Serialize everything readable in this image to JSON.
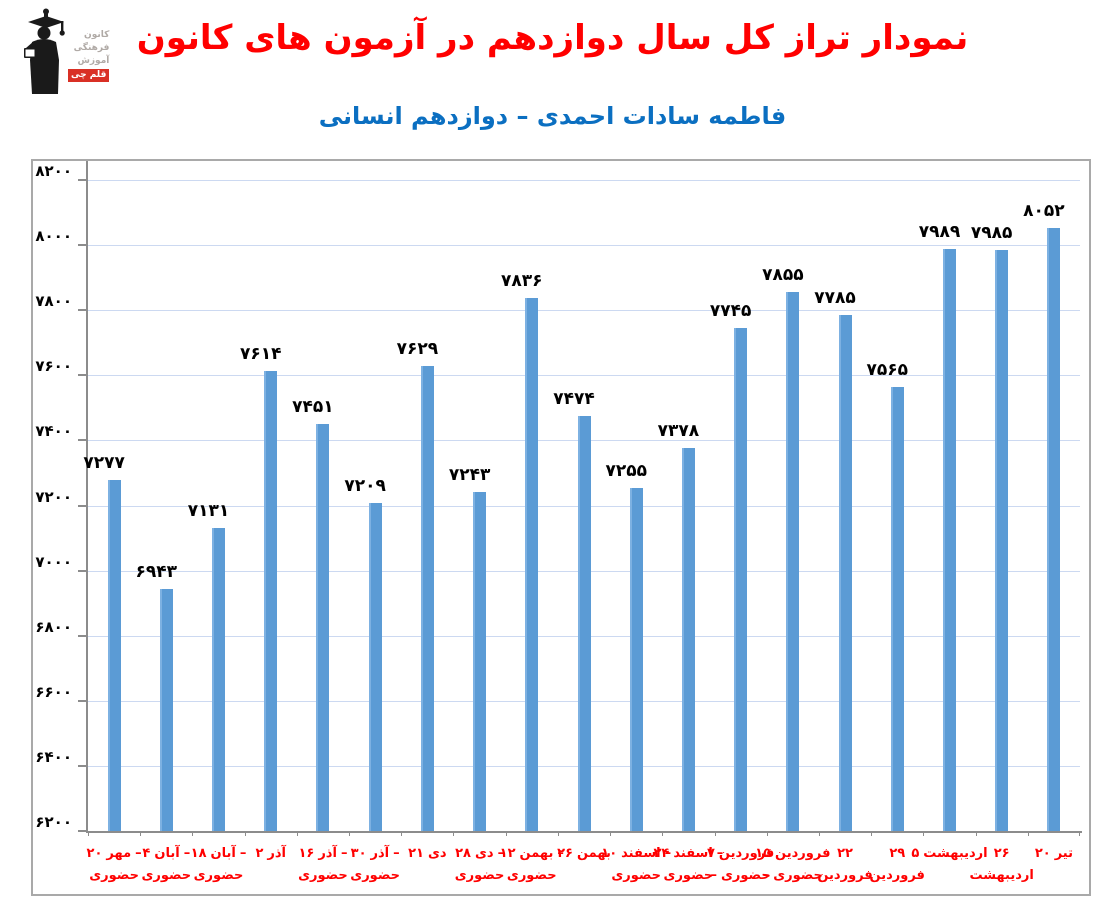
{
  "header": {
    "title": "نمودار تراز کل سال دوازدهم در آزمون های کانون",
    "subtitle": "فاطمه سادات احمدی – دوازدهم انسانی",
    "title_color": "#FF0000",
    "subtitle_color": "#0B6FC1",
    "logo": {
      "line1": "کانون",
      "line2": "فرهنگی",
      "line3": "آموزش",
      "badge": "قلم چی",
      "badge_color": "#D93025",
      "icon": "graduate-silhouette"
    }
  },
  "chart_data": {
    "type": "bar",
    "title": "نمودار تراز کل سال دوازدهم در آزمون های کانون",
    "subtitle": "فاطمه سادات احمدی – دوازدهم انسانی",
    "xlabel": "",
    "ylabel": "",
    "ylim": [
      6200,
      8200
    ],
    "y_step": 200,
    "grid": true,
    "legend": "none",
    "bar_color": "#5B9BD5",
    "grid_color": "#CCD9F1",
    "axis_color": "#8C8C8C",
    "value_label_color": "#000000",
    "category_label_color": "#FF0000",
    "y_ticks": [
      6200,
      6400,
      6600,
      6800,
      7000,
      7200,
      7400,
      7600,
      7800,
      8000,
      8200
    ],
    "y_tick_labels_fa": [
      "۶۲۰۰",
      "۶۴۰۰",
      "۶۶۰۰",
      "۶۸۰۰",
      "۷۰۰۰",
      "۷۲۰۰",
      "۷۴۰۰",
      "۷۶۰۰",
      "۷۸۰۰",
      "۸۰۰۰",
      "۸۲۰۰"
    ],
    "categories": [
      "۲۰ مهر – حضوری",
      "۴ آبان – حضوری",
      "۱۸ آبان – حضوری",
      "۲ آذر",
      "۱۶ آذر – حضوری",
      "۳۰ آذر – حضوری",
      "۲۱ دی",
      "۲۸ دی – حضوری",
      "۱۲ بهمن – حضوری",
      "۲۶ بهمن",
      "۱۰ اسفند – حضوری",
      "۲۴ اسفند – حضوری",
      "۷ فروردین – حضوری",
      "۱۵ فروردین – حضوری",
      "۲۲ فروردین",
      "۲۹ فروردین",
      "۵ اردیبهشت",
      "۲۶ اردیبهشت",
      "۲۰ تیر"
    ],
    "category_lines": [
      [
        "۲۰ مهر –",
        "حضوری"
      ],
      [
        "۴ آبان –",
        "حضوری"
      ],
      [
        "۱۸ آبان –",
        "حضوری"
      ],
      [
        "۲ آذر",
        ""
      ],
      [
        "۱۶ آذر –",
        "حضوری"
      ],
      [
        "۳۰ آذر –",
        "حضوری"
      ],
      [
        "۲۱ دی",
        ""
      ],
      [
        "۲۸ دی –",
        "حضوری"
      ],
      [
        "۱۲ بهمن –",
        "حضوری"
      ],
      [
        "۲۶ بهمن",
        ""
      ],
      [
        "۱۰ اسفند –",
        "حضوری"
      ],
      [
        "۲۴ اسفند –",
        "حضوری"
      ],
      [
        "۷ فروردین",
        "– حضوری"
      ],
      [
        "۱۵ فروردین",
        "– حضوری"
      ],
      [
        "۲۲",
        "فروردین"
      ],
      [
        "۲۹",
        "فروردین"
      ],
      [
        "۵ اردیبهشت",
        ""
      ],
      [
        "۲۶",
        "اردیبهشت"
      ],
      [
        "۲۰ تیر",
        ""
      ]
    ],
    "values": [
      7277,
      6943,
      7131,
      7614,
      7451,
      7209,
      7629,
      7243,
      7836,
      7474,
      7255,
      7378,
      7745,
      7855,
      7785,
      7565,
      7989,
      7985,
      8052
    ],
    "value_labels_fa": [
      "۷۲۷۷",
      "۶۹۴۳",
      "۷۱۳۱",
      "۷۶۱۴",
      "۷۴۵۱",
      "۷۲۰۹",
      "۷۶۲۹",
      "۷۲۴۳",
      "۷۸۳۶",
      "۷۴۷۴",
      "۷۲۵۵",
      "۷۳۷۸",
      "۷۷۴۵",
      "۷۸۵۵",
      "۷۷۸۵",
      "۷۵۶۵",
      "۷۹۸۹",
      "۷۹۸۵",
      "۸۰۵۲"
    ]
  }
}
